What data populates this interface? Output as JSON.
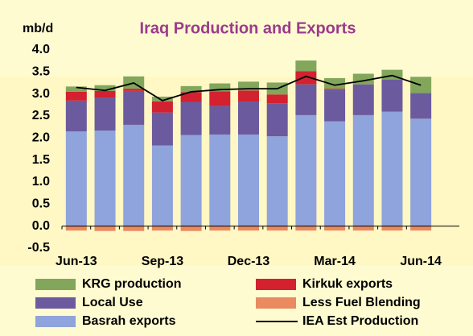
{
  "chart_data": {
    "type": "bar",
    "title": "Iraq Production and Exports",
    "y_label": "mb/d",
    "categories": [
      "Jun-13",
      null,
      null,
      "Sep-13",
      null,
      null,
      "Dec-13",
      null,
      null,
      "Mar-14",
      null,
      null,
      "Jun-14"
    ],
    "series": [
      {
        "name": "Basrah exports",
        "color": "#8fa3dc",
        "values": [
          2.15,
          2.17,
          2.3,
          1.83,
          2.07,
          2.08,
          2.08,
          2.04,
          2.52,
          2.38,
          2.52,
          2.6,
          2.44
        ]
      },
      {
        "name": "Local Use",
        "color": "#6b5b9e",
        "values": [
          0.7,
          0.75,
          0.77,
          0.75,
          0.75,
          0.65,
          0.75,
          0.75,
          0.7,
          0.72,
          0.7,
          0.73,
          0.58
        ]
      },
      {
        "name": "Kirkuk exports",
        "color": "#d3212f",
        "values": [
          0.2,
          0.15,
          0.05,
          0.25,
          0.22,
          0.33,
          0.25,
          0.2,
          0.3,
          0.02,
          0,
          0,
          0
        ]
      },
      {
        "name": "KRG production",
        "color": "#82a65c",
        "values": [
          0.12,
          0.13,
          0.28,
          0.11,
          0.14,
          0.18,
          0.2,
          0.27,
          0.24,
          0.24,
          0.24,
          0.22,
          0.37
        ]
      },
      {
        "name": "Less Fuel Blending",
        "color": "#e98a60",
        "values": [
          -0.1,
          -0.11,
          -0.11,
          -0.1,
          -0.11,
          -0.1,
          -0.1,
          -0.1,
          -0.1,
          -0.1,
          -0.1,
          -0.1,
          -0.1
        ]
      },
      {
        "name": "IEA Est Production",
        "color": "#000000",
        "type": "line",
        "values": [
          3.15,
          3.08,
          3.25,
          2.85,
          3.05,
          3.1,
          3.12,
          3.12,
          3.4,
          3.2,
          3.3,
          3.42,
          3.2
        ]
      }
    ],
    "legend_order": [
      3,
      2,
      1,
      4,
      0,
      5
    ],
    "ylim": [
      -0.5,
      4.0
    ],
    "yticks": [
      {
        "value": 4.0,
        "label": "4.0"
      },
      3.5,
      {
        "value": 3.0,
        "label": "3.0"
      },
      2.5,
      {
        "value": 2.0,
        "label": "2.0"
      },
      1.5,
      {
        "value": 1.0,
        "label": "1.0"
      },
      0.5,
      {
        "value": 0.0,
        "label": "0.0"
      },
      -0.5
    ]
  }
}
